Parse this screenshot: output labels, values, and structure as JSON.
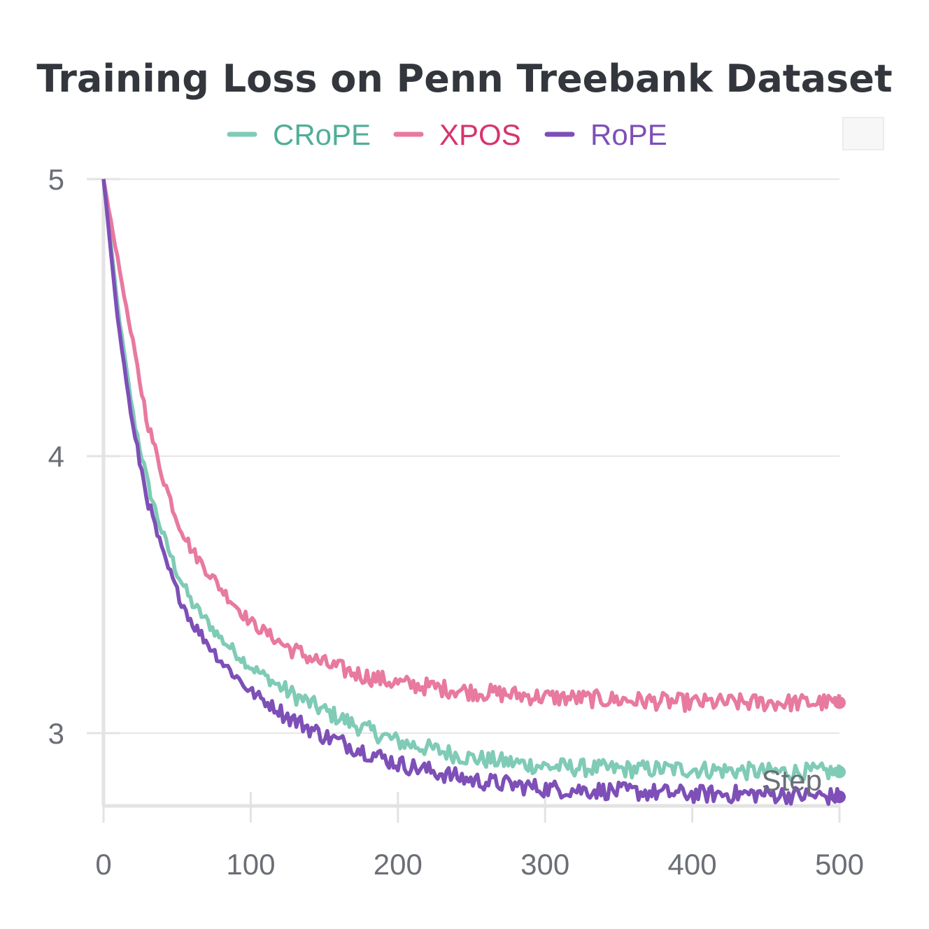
{
  "chart_data": {
    "type": "line",
    "title": "Training Loss on Penn Treebank Dataset",
    "xlabel": "Step",
    "ylabel": "",
    "xlim": [
      0,
      500
    ],
    "ylim": [
      2.7,
      5.0
    ],
    "x_ticks": [
      "0",
      "100",
      "200",
      "300",
      "400",
      "500"
    ],
    "y_ticks": [
      "3",
      "4",
      "5"
    ],
    "grid": true,
    "legend_position": "top-center",
    "series": [
      {
        "name": "CRoPE",
        "color": "#7fcbb6",
        "legend_text_color": "#4fae97",
        "x": [
          0,
          10,
          20,
          30,
          40,
          50,
          60,
          80,
          100,
          125,
          150,
          175,
          200,
          250,
          300,
          350,
          400,
          450,
          500
        ],
        "y": [
          5.0,
          4.52,
          4.15,
          3.9,
          3.72,
          3.58,
          3.47,
          3.34,
          3.24,
          3.15,
          3.08,
          3.02,
          2.97,
          2.91,
          2.88,
          2.87,
          2.87,
          2.86,
          2.86
        ]
      },
      {
        "name": "XPOS",
        "color": "#e8799f",
        "legend_text_color": "#d8336e",
        "x": [
          0,
          10,
          20,
          30,
          40,
          50,
          60,
          80,
          100,
          125,
          150,
          175,
          200,
          250,
          300,
          350,
          400,
          450,
          500
        ],
        "y": [
          5.0,
          4.7,
          4.4,
          4.12,
          3.93,
          3.77,
          3.66,
          3.52,
          3.4,
          3.31,
          3.25,
          3.21,
          3.18,
          3.15,
          3.13,
          3.12,
          3.11,
          3.11,
          3.11
        ]
      },
      {
        "name": "RoPE",
        "color": "#7d4fb7",
        "legend_text_color": "#7d4fb7",
        "x": [
          0,
          10,
          20,
          30,
          40,
          50,
          60,
          80,
          100,
          125,
          150,
          175,
          200,
          250,
          300,
          350,
          400,
          450,
          500
        ],
        "y": [
          5.0,
          4.48,
          4.1,
          3.84,
          3.65,
          3.51,
          3.4,
          3.26,
          3.15,
          3.06,
          2.99,
          2.94,
          2.89,
          2.83,
          2.8,
          2.79,
          2.78,
          2.78,
          2.77
        ]
      }
    ]
  }
}
